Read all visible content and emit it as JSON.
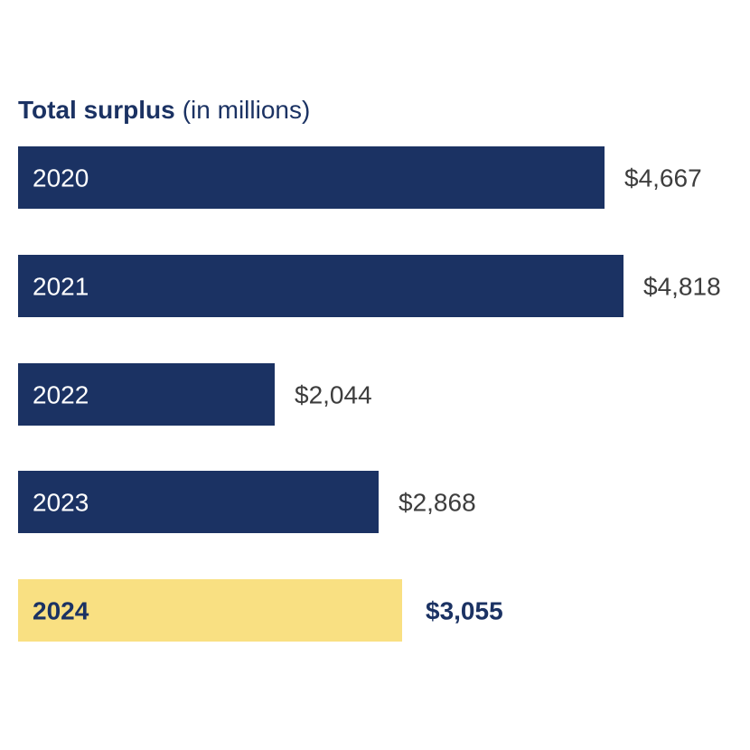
{
  "colors": {
    "bar": "#1b3263",
    "highlight_bar": "#f9e082",
    "title": "#1b3263",
    "value_text": "#3d3d3d",
    "highlight_text": "#1b3263",
    "category_text_on_dark": "#ffffff"
  },
  "chart_data": {
    "type": "bar",
    "orientation": "horizontal",
    "title": "Total surplus",
    "subtitle": "(in millions)",
    "categories": [
      "2020",
      "2021",
      "2022",
      "2023",
      "2024"
    ],
    "values": [
      4667,
      4818,
      2044,
      2868,
      3055
    ],
    "value_labels": [
      "$4,667",
      "$4,818",
      "$2,044",
      "$2,868",
      "$3,055"
    ],
    "highlight": "2024",
    "xlim": [
      0,
      4818
    ],
    "grid": false,
    "legend": "none"
  }
}
